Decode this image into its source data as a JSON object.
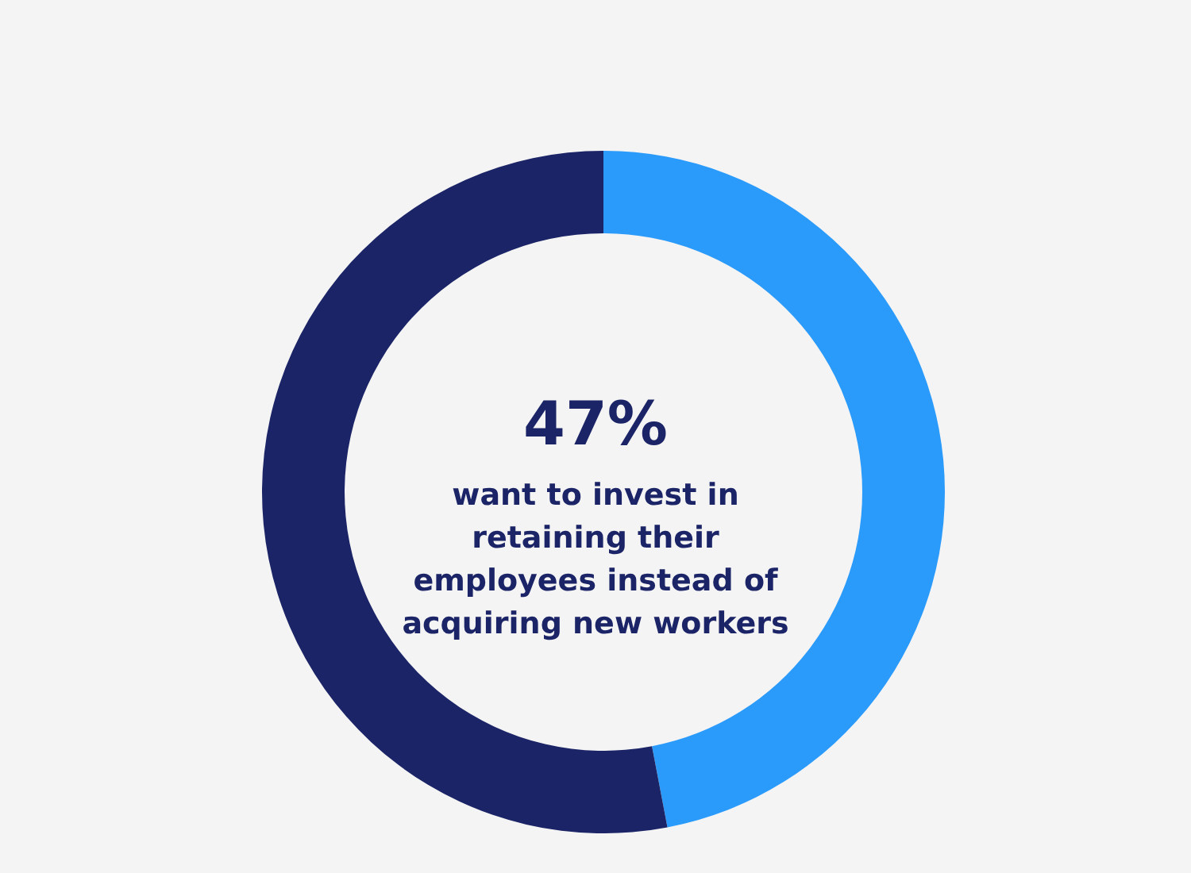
{
  "chart_data": {
    "type": "donut",
    "categories": [
      null,
      null
    ],
    "values": [
      47,
      53
    ],
    "colors": [
      "#2b9bfb",
      "#1b2466"
    ],
    "annotations": [
      "47%",
      "want to invest in retaining their employees instead of acquiring new workers"
    ]
  }
}
